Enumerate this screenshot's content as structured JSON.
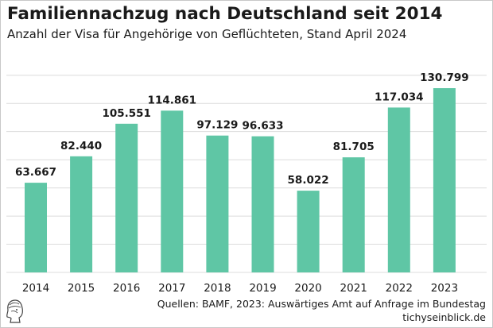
{
  "header": {
    "title": "Familiennachzug nach Deutschland seit 2014",
    "subtitle": "Anzahl der Visa für Angehörige von Geflüchteten, Stand April 2024"
  },
  "footer": {
    "source": "Quellen: BAMF, 2023: Auswärtiges Amt auf Anfrage im Bundestag",
    "brand": "tichyseinblick.de"
  },
  "colors": {
    "bar": "#5fc6a5",
    "grid": "#dcdcdc",
    "text": "#1a1a1a"
  },
  "chart_data": {
    "type": "bar",
    "categories": [
      "2014",
      "2015",
      "2016",
      "2017",
      "2018",
      "2019",
      "2020",
      "2021",
      "2022",
      "2023"
    ],
    "values": [
      63667,
      82440,
      105551,
      114861,
      97129,
      96633,
      58022,
      81705,
      117034,
      130799
    ],
    "value_labels": [
      "63.667",
      "82.440",
      "105.551",
      "114.861",
      "97.129",
      "96.633",
      "58.022",
      "81.705",
      "117.034",
      "130.799"
    ],
    "title": "Familiennachzug nach Deutschland seit 2014",
    "subtitle": "Anzahl der Visa für Angehörige von Geflüchteten, Stand April 2024",
    "ylim": [
      0,
      140000
    ],
    "y_grid": true,
    "y_tick_labels_shown": false
  }
}
